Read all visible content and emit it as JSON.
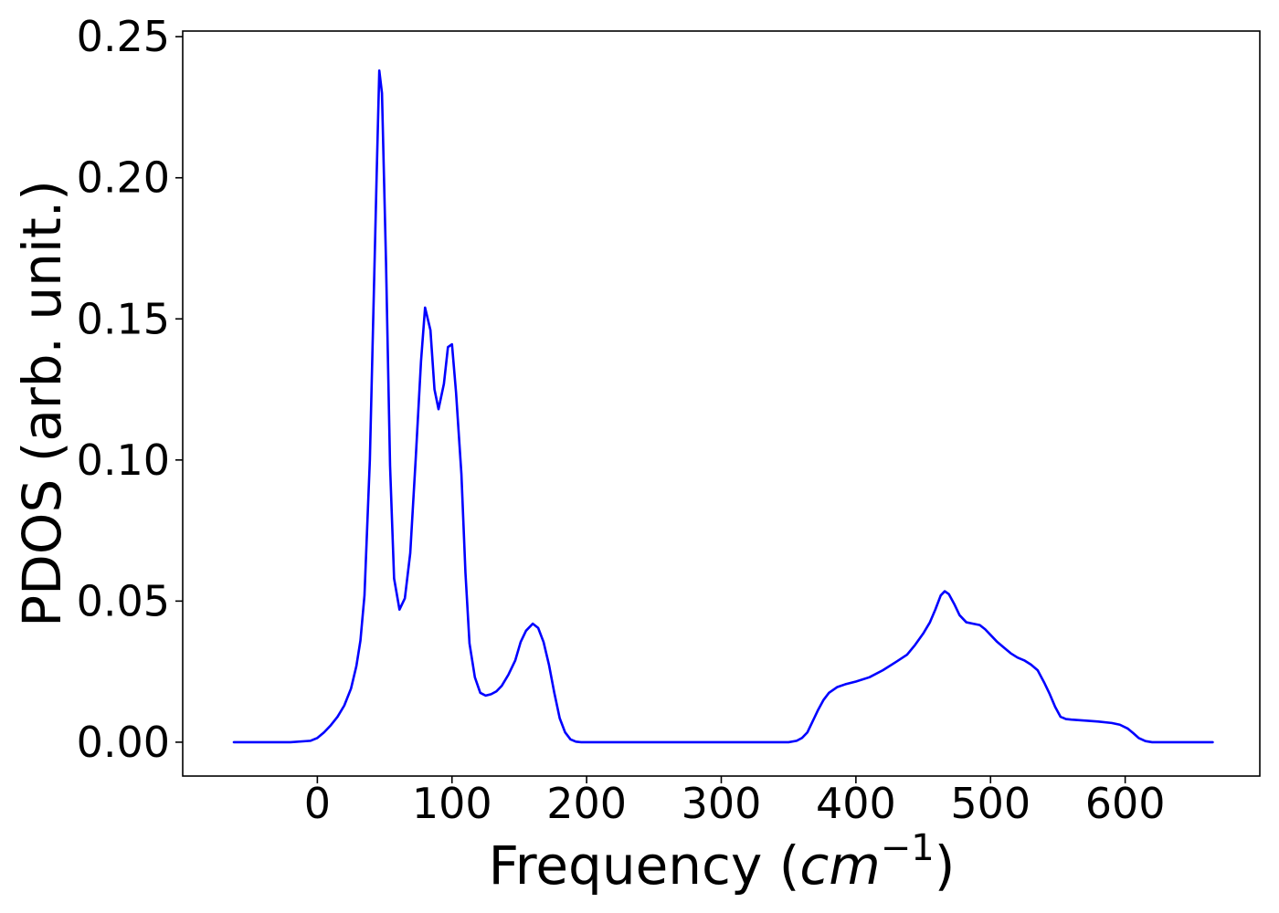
{
  "chart_data": {
    "type": "line",
    "title": "",
    "xlabel": {
      "prefix": "Frequency (",
      "var": "cm",
      "sup": "−1",
      "suffix": ")"
    },
    "ylabel": "PDOS (arb. unit.)",
    "xlim": [
      -100,
      700
    ],
    "ylim": [
      -0.012,
      0.252
    ],
    "xticks": [
      0,
      100,
      200,
      300,
      400,
      500,
      600
    ],
    "xtick_labels": [
      "0",
      "100",
      "200",
      "300",
      "400",
      "500",
      "600"
    ],
    "yticks": [
      0.0,
      0.05,
      0.1,
      0.15,
      0.2,
      0.25
    ],
    "ytick_labels": [
      "0.00",
      "0.05",
      "0.10",
      "0.15",
      "0.20",
      "0.25"
    ],
    "grid": false,
    "legend": "none",
    "series": [
      {
        "color": "#0000ff",
        "x": [
          -62,
          -20,
          -5,
          0,
          5,
          10,
          15,
          20,
          25,
          29,
          32,
          35,
          39,
          42,
          44,
          46,
          48,
          51,
          54,
          57,
          61,
          65,
          69,
          73,
          77,
          80,
          84,
          87,
          90,
          94,
          97,
          100,
          103,
          107,
          110,
          113,
          117,
          121,
          125,
          129,
          133,
          137,
          142,
          147,
          151,
          155,
          160,
          164,
          168,
          172,
          176,
          180,
          184,
          188,
          192,
          196,
          200,
          250,
          300,
          350,
          356,
          360,
          364,
          368,
          372,
          376,
          380,
          386,
          392,
          400,
          410,
          420,
          430,
          438,
          444,
          450,
          455,
          459,
          463,
          466,
          469,
          473,
          477,
          482,
          487,
          492,
          496,
          500,
          505,
          510,
          515,
          520,
          525,
          530,
          535,
          540,
          544,
          548,
          552,
          556,
          560,
          566,
          572,
          580,
          590,
          596,
          602,
          606,
          610,
          615,
          620,
          640,
          665
        ],
        "y": [
          0.0,
          0.0,
          0.0005,
          0.0015,
          0.0035,
          0.006,
          0.009,
          0.013,
          0.019,
          0.027,
          0.036,
          0.052,
          0.1,
          0.16,
          0.2,
          0.238,
          0.23,
          0.17,
          0.098,
          0.058,
          0.047,
          0.051,
          0.067,
          0.1,
          0.135,
          0.154,
          0.146,
          0.125,
          0.118,
          0.127,
          0.14,
          0.141,
          0.124,
          0.095,
          0.06,
          0.035,
          0.023,
          0.0175,
          0.0165,
          0.017,
          0.018,
          0.02,
          0.024,
          0.029,
          0.0355,
          0.0395,
          0.042,
          0.0405,
          0.0355,
          0.0275,
          0.0175,
          0.0085,
          0.0035,
          0.001,
          0.0002,
          0.0,
          0.0,
          0.0,
          0.0,
          0.0,
          0.0005,
          0.0015,
          0.0035,
          0.0075,
          0.0115,
          0.015,
          0.0175,
          0.0195,
          0.0205,
          0.0215,
          0.023,
          0.0255,
          0.0285,
          0.031,
          0.0345,
          0.0385,
          0.0425,
          0.047,
          0.052,
          0.0535,
          0.0525,
          0.049,
          0.045,
          0.0425,
          0.042,
          0.0415,
          0.04,
          0.038,
          0.0355,
          0.0335,
          0.0315,
          0.03,
          0.029,
          0.0275,
          0.0255,
          0.021,
          0.017,
          0.0125,
          0.009,
          0.0082,
          0.008,
          0.0078,
          0.0076,
          0.0073,
          0.0068,
          0.0062,
          0.0048,
          0.0032,
          0.0015,
          0.0004,
          0.0,
          0.0,
          0.0
        ]
      }
    ]
  }
}
